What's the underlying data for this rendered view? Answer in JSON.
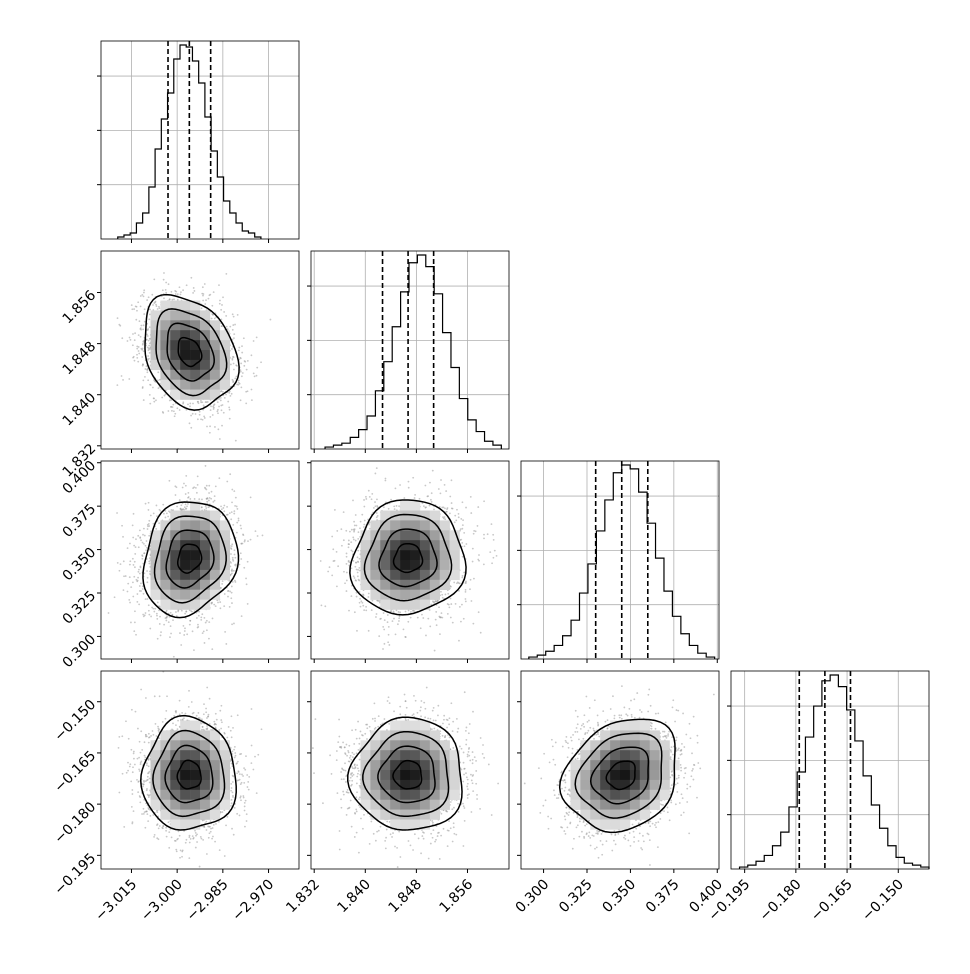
{
  "chart_data": {
    "type": "corner",
    "title": "",
    "params": [
      {
        "range": [
          -3.025,
          -2.96
        ],
        "ticks": [
          -3.015,
          -3.0,
          -2.985,
          -2.97
        ],
        "tick_labels": [
          "−3.015",
          "−3.000",
          "−2.985",
          "−2.970"
        ],
        "median": -2.996,
        "q16": -3.003,
        "q84": -2.989
      },
      {
        "range": [
          1.8315,
          1.8625
        ],
        "ticks": [
          1.832,
          1.84,
          1.848,
          1.856
        ],
        "tick_labels": [
          "1.832",
          "1.840",
          "1.848",
          "1.856"
        ],
        "median": 1.8467,
        "q16": 1.8427,
        "q84": 1.8507
      },
      {
        "range": [
          0.287,
          0.401
        ],
        "ticks": [
          0.3,
          0.325,
          0.35,
          0.375,
          0.4
        ],
        "tick_labels": [
          "0.300",
          "0.325",
          "0.350",
          "0.375",
          "0.400"
        ],
        "median": 0.345,
        "q16": 0.33,
        "q84": 0.36
      },
      {
        "range": [
          -0.199,
          -0.141
        ],
        "ticks": [
          -0.195,
          -0.18,
          -0.165,
          -0.15
        ],
        "tick_labels": [
          "−0.195",
          "−0.180",
          "−0.165",
          "−0.150"
        ],
        "median": -0.1715,
        "q16": -0.179,
        "q84": -0.164
      }
    ],
    "histograms": [
      {
        "bin_edges_range": [
          -3.0195,
          -2.9725
        ],
        "counts": [
          1,
          2,
          3,
          8,
          13,
          26,
          45,
          60,
          73,
          90,
          97,
          96,
          89,
          78,
          61,
          44,
          31,
          19,
          13,
          8,
          4,
          3,
          1
        ]
      },
      {
        "bin_edges_range": [
          1.8337,
          1.8613
        ],
        "counts": [
          1,
          2,
          3,
          6,
          10,
          17,
          30,
          45,
          63,
          81,
          96,
          100,
          94,
          80,
          60,
          42,
          26,
          15,
          9,
          4,
          2
        ]
      },
      {
        "bin_edges_range": [
          0.2915,
          0.3985
        ],
        "counts": [
          1,
          2,
          4,
          7,
          12,
          20,
          34,
          49,
          66,
          82,
          96,
          100,
          98,
          86,
          70,
          52,
          35,
          22,
          13,
          7,
          3,
          1
        ]
      },
      {
        "bin_edges_range": [
          -0.1965,
          -0.141
        ],
        "counts": [
          1,
          2,
          4,
          7,
          12,
          19,
          32,
          50,
          68,
          84,
          97,
          100,
          94,
          82,
          66,
          48,
          33,
          21,
          12,
          6,
          3,
          2,
          1
        ]
      }
    ],
    "correlations": [
      {
        "row": 1,
        "col": 0,
        "rho": -0.25
      },
      {
        "row": 2,
        "col": 0,
        "rho": 0.15
      },
      {
        "row": 2,
        "col": 1,
        "rho": 0.05
      },
      {
        "row": 3,
        "col": 0,
        "rho": 0.0
      },
      {
        "row": 3,
        "col": 1,
        "rho": 0.0
      },
      {
        "row": 3,
        "col": 2,
        "rho": 0.2
      }
    ],
    "contour_levels_sigma": [
      0.5,
      1.0,
      1.5,
      2.0
    ],
    "grid": true,
    "colors": {
      "line": "#000000",
      "grid": "#b0b0b0",
      "points": "#9a9a9a",
      "density": "#000000"
    }
  }
}
